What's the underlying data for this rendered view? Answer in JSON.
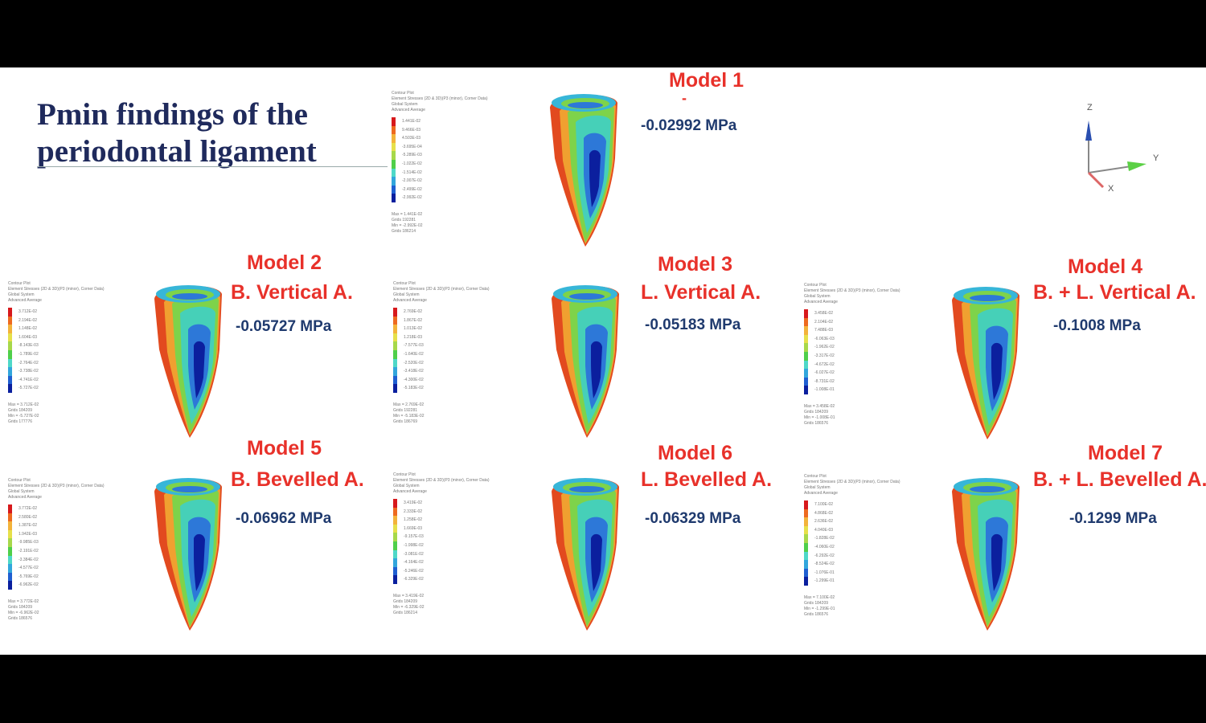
{
  "title": {
    "line1": "Pmin findings of the",
    "line2": "periodontal ligament"
  },
  "legend_header": [
    "Contour Plot",
    "Element Stresses (2D & 3D)(P3 (minor), Corner Data)",
    "Global System",
    "Advanced Average"
  ],
  "colors": {
    "accent_red": "#e8312a",
    "value_blue": "#1f3a6e",
    "title_navy": "#1f2a5c",
    "scale": [
      "#d7191c",
      "#ee6a1f",
      "#f3b33a",
      "#e6e04a",
      "#a7d84a",
      "#4fcf4a",
      "#4ed8c8",
      "#32a6dc",
      "#1f5fd1",
      "#0a1f9e"
    ]
  },
  "axes": {
    "z": "Z",
    "y": "Y",
    "x": "X"
  },
  "models": [
    {
      "title": "Model 1",
      "subtitle": "-",
      "value": "-0.02992 MPa",
      "legend": [
        "1.441E-02",
        "9.466E-03",
        "4.503E-03",
        "-3.695E-04",
        "-5.289E-03",
        "-1.022E-02",
        "-1.514E-02",
        "-2.007E-02",
        "-2.499E-02",
        "-2.992E-02"
      ],
      "footer": [
        "Max = 1.441E-02",
        "Grids 192281",
        "Min = -2.992E-02",
        "Grids 186214"
      ]
    },
    {
      "title": "Model 2",
      "subtitle": "B. Vertical A.",
      "value": "-0.05727 MPa",
      "legend": [
        "3.712E-02",
        "2.194E-02",
        "1.148E-02",
        "1.604E-03",
        "-8.143E-03",
        "-1.789E-02",
        "-2.764E-02",
        "-3.738E-02",
        "-4.741E-02",
        "-5.727E-02"
      ],
      "footer": [
        "Max = 3.712E-02",
        "Grids 184209",
        "Min = -5.727E-02",
        "Grids 177776"
      ]
    },
    {
      "title": "Model 3",
      "subtitle": "L. Vertical A.",
      "value": "-0.05183 MPa",
      "legend": [
        "2.769E-02",
        "1.867E-02",
        "1.013E-02",
        "1.218E-03",
        "-7.577E-03",
        "-1.640E-02",
        "-2.520E-02",
        "-3.418E-02",
        "-4.300E-02",
        "-5.183E-02"
      ],
      "footer": [
        "Max = 2.769E-02",
        "Grids 192281",
        "Min = -5.183E-02",
        "Grids 186769"
      ]
    },
    {
      "title": "Model 4",
      "subtitle": "B. + L. Vertical A.",
      "value": "-0.1008 MPa",
      "legend": [
        "3.458E-02",
        "2.104E-02",
        "7.488E-03",
        "-6.063E-03",
        "-1.962E-02",
        "-3.317E-02",
        "-4.672E-02",
        "-6.027E-02",
        "-8.731E-02",
        "-1.008E-01"
      ],
      "footer": [
        "Max = 3.458E-02",
        "Grids 184209",
        "Min = -1.008E-01",
        "Grids 186576"
      ]
    },
    {
      "title": "Model 5",
      "subtitle": "B. Bevelled A.",
      "value": "-0.06962 MPa",
      "legend": [
        "3.772E-02",
        "2.580E-02",
        "1.387E-02",
        "1.942E-03",
        "-9.985E-03",
        "-2.191E-02",
        "-3.384E-02",
        "-4.577E-02",
        "-5.769E-02",
        "-6.962E-02"
      ],
      "footer": [
        "Max = 3.772E-02",
        "Grids 184209",
        "Min = -6.962E-02",
        "Grids 186576"
      ]
    },
    {
      "title": "Model 6",
      "subtitle": "L. Bevelled A.",
      "value": "-0.06329 MPa",
      "legend": [
        "3.419E-02",
        "2.333E-02",
        "1.258E-02",
        "1.669E-03",
        "-9.157E-03",
        "-1.998E-02",
        "-3.081E-02",
        "-4.164E-02",
        "-5.246E-02",
        "-6.329E-02"
      ],
      "footer": [
        "Max = 3.419E-02",
        "Grids 184209",
        "Min = -6.329E-02",
        "Grids 186214"
      ]
    },
    {
      "title": "Model 7",
      "subtitle": "B. + L. Bevelled A.",
      "value": "-0.1299 MPa",
      "legend": [
        "7.100E-02",
        "4.868E-02",
        "2.636E-02",
        "4.040E-03",
        "-1.828E-02",
        "-4.060E-02",
        "-6.292E-02",
        "-8.524E-02",
        "-1.076E-01",
        "-1.299E-01"
      ],
      "footer": [
        "Max = 7.100E-02",
        "Grids 184209",
        "Min = -1.299E-01",
        "Grids 186576"
      ]
    }
  ]
}
